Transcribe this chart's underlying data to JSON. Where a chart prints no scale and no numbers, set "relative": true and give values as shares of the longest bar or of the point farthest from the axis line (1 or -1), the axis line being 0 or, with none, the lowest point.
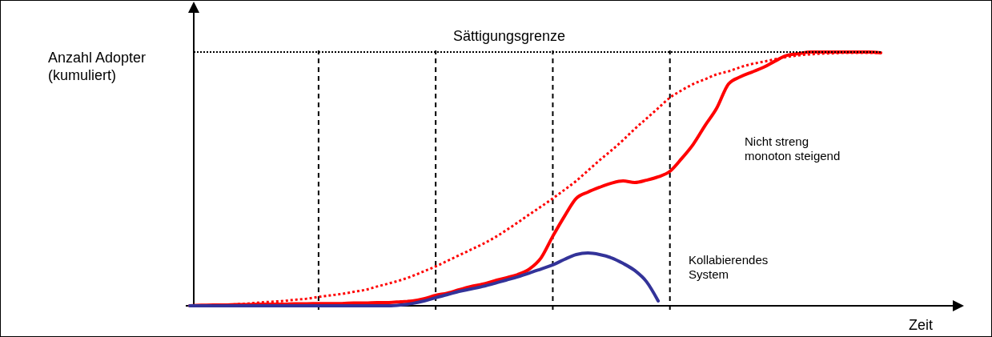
{
  "chart_data": {
    "type": "line",
    "relative": true,
    "xlabel": "Zeit",
    "ylabel": "Anzahl Adopter\n(kumuliert)",
    "categories": [
      null,
      null,
      null,
      null,
      null,
      null,
      null,
      null,
      null,
      null,
      null,
      null,
      null,
      null,
      null,
      null,
      null,
      null,
      null,
      null,
      null,
      null,
      null,
      null,
      null,
      null,
      null,
      null,
      null,
      null,
      null,
      null,
      null,
      null,
      null,
      null,
      null,
      null,
      null,
      null,
      null,
      null,
      null,
      null,
      null,
      null,
      null,
      null,
      null,
      null,
      null,
      null,
      null,
      null,
      null,
      null,
      null,
      null,
      null,
      null
    ],
    "series": [
      {
        "color": "#ff0000",
        "line_style": "dotted",
        "values": [
          0,
          0,
          0.002,
          0.003,
          0.006,
          0.009,
          0.013,
          0.016,
          0.019,
          0.024,
          0.028,
          0.035,
          0.041,
          0.047,
          0.055,
          0.063,
          0.076,
          0.088,
          0.101,
          0.117,
          0.136,
          0.155,
          0.177,
          0.199,
          0.221,
          0.243,
          0.268,
          0.297,
          0.328,
          0.36,
          0.391,
          0.423,
          0.457,
          0.492,
          0.533,
          0.574,
          0.612,
          0.653,
          0.697,
          0.738,
          0.779,
          0.82,
          0.849,
          0.874,
          0.893,
          0.912,
          0.924,
          0.94,
          0.953,
          0.962,
          0.972,
          0.981,
          0.987,
          0.991,
          0.994,
          0.995,
          0.997,
          0.997,
          0.997,
          0.997
        ]
      },
      {
        "color": "#ff0000",
        "line_style": "solid",
        "values": [
          0,
          0.002,
          0.003,
          0.003,
          0.005,
          0.005,
          0.006,
          0.006,
          0.006,
          0.008,
          0.008,
          0.009,
          0.009,
          0.009,
          0.011,
          0.011,
          0.013,
          0.013,
          0.016,
          0.019,
          0.028,
          0.041,
          0.05,
          0.063,
          0.076,
          0.085,
          0.098,
          0.11,
          0.123,
          0.145,
          0.189,
          0.274,
          0.353,
          0.423,
          0.448,
          0.467,
          0.483,
          0.492,
          0.486,
          0.495,
          0.508,
          0.53,
          0.58,
          0.637,
          0.71,
          0.779,
          0.874,
          0.902,
          0.921,
          0.94,
          0.965,
          0.987,
          0.994,
          1,
          1,
          1,
          1,
          1,
          1,
          0.997
        ]
      },
      {
        "color": "#333399",
        "line_style": "solid",
        "values": [
          0,
          0,
          0,
          0,
          0,
          0,
          0,
          0,
          0,
          0,
          0,
          0,
          0,
          0,
          0,
          0,
          0,
          0,
          0.003,
          0.009,
          0.019,
          0.032,
          0.044,
          0.057,
          0.066,
          0.076,
          0.088,
          0.101,
          0.114,
          0.129,
          0.145,
          0.161,
          0.183,
          0.202,
          0.208,
          0.202,
          0.189,
          0.167,
          0.139,
          0.095,
          0.019,
          null,
          null,
          null,
          null,
          null,
          null,
          null,
          null,
          null,
          null,
          null,
          null,
          null,
          null,
          null,
          null,
          null,
          null,
          null
        ]
      }
    ],
    "annotations": [
      "Sättigungsgrenze",
      "Nicht streng\nmonoton steigend",
      "Kollabierendes\nSystem"
    ],
    "grid": "x"
  }
}
